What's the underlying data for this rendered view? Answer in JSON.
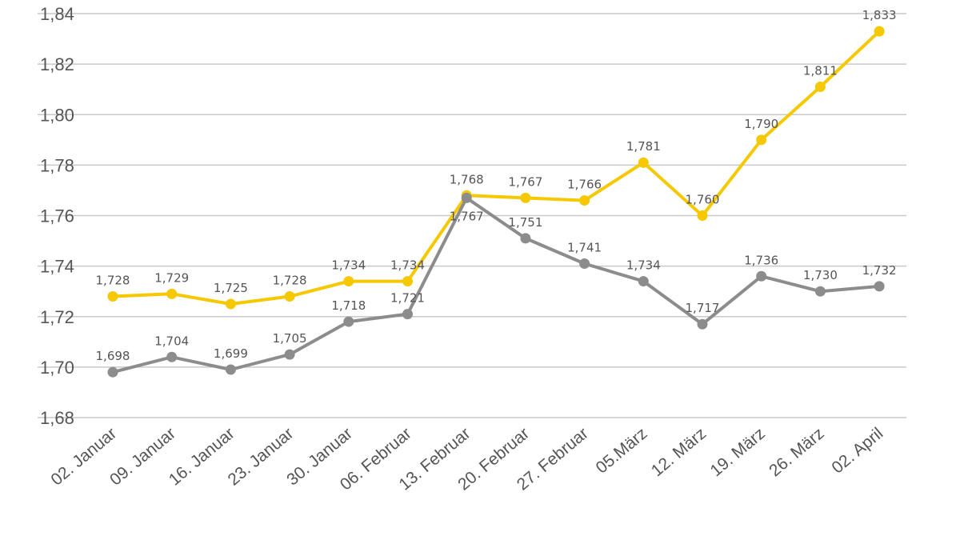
{
  "chart_data": {
    "type": "line",
    "title": "",
    "xlabel": "",
    "ylabel": "",
    "ylim": [
      1.68,
      1.84
    ],
    "y_ticks": [
      1.68,
      1.7,
      1.72,
      1.74,
      1.76,
      1.78,
      1.8,
      1.82,
      1.84
    ],
    "y_tick_labels": [
      "1,68",
      "1,70",
      "1,72",
      "1,74",
      "1,76",
      "1,78",
      "1,80",
      "1,82",
      "1,84"
    ],
    "grid": true,
    "legend": "none",
    "categories": [
      "02. Januar",
      "09. Januar",
      "16. Januar",
      "23. Januar",
      "30. Januar",
      "06. Februar",
      "13. Februar",
      "20. Februar",
      "27. Februar",
      "05.März",
      "12. März",
      "19. März",
      "26. März",
      "02. April"
    ],
    "series": [
      {
        "name": "yellow",
        "color": "#f5c800",
        "values": [
          1.728,
          1.729,
          1.725,
          1.728,
          1.734,
          1.734,
          1.768,
          1.767,
          1.766,
          1.781,
          1.76,
          1.79,
          1.811,
          1.833
        ],
        "labels": [
          "1,728",
          "1,729",
          "1,725",
          "1,728",
          "1,734",
          "1,734",
          "1,768",
          "1,767",
          "1,766",
          "1,781",
          "1,760",
          "1,790",
          "1,811",
          "1,833"
        ]
      },
      {
        "name": "gray",
        "color": "#8c8c8c",
        "values": [
          1.698,
          1.704,
          1.699,
          1.705,
          1.718,
          1.721,
          1.767,
          1.751,
          1.741,
          1.734,
          1.717,
          1.736,
          1.73,
          1.732
        ],
        "labels": [
          "1,698",
          "1,704",
          "1,699",
          "1,705",
          "1,718",
          "1,721",
          "1,767",
          "1,751",
          "1,741",
          "1,734",
          "1,717",
          "1,736",
          "1,730",
          "1,732"
        ]
      }
    ]
  }
}
